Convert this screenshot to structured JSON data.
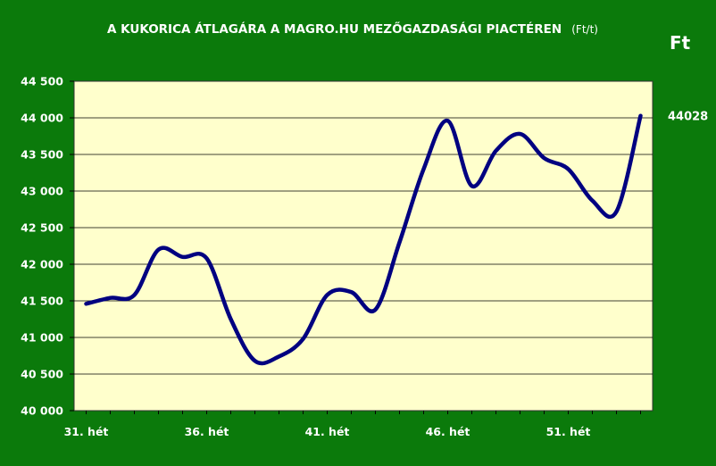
{
  "chart_data": {
    "type": "line",
    "title": "A KUKORICA ÁTLAGÁRA A MAGRO.HU MEZŐGAZDASÁGI PIACTÉREN",
    "title_suffix": "(Ft/t)",
    "unit_label": "Ft",
    "x_tick_labels": [
      "31. hét",
      "36. hét",
      "41. hét",
      "46. hét",
      "51. hét"
    ],
    "x_tick_positions": [
      31,
      36,
      41,
      46,
      51
    ],
    "y_tick_labels": [
      "40 000",
      "40 500",
      "41 000",
      "41 500",
      "42 000",
      "42 500",
      "43 000",
      "43 500",
      "44 000",
      "44 500"
    ],
    "ylim": [
      40000,
      44500
    ],
    "xlim": [
      30.5,
      54.5
    ],
    "grid": true,
    "x": [
      31,
      32,
      33,
      34,
      35,
      36,
      37,
      38,
      39,
      40,
      41,
      42,
      43,
      44,
      45,
      46,
      47,
      48,
      49,
      50,
      51,
      52,
      53,
      54
    ],
    "values": [
      41460,
      41540,
      41580,
      42200,
      42100,
      42080,
      41250,
      40680,
      40740,
      40980,
      41580,
      41620,
      41380,
      42300,
      43300,
      43960,
      43070,
      43550,
      43780,
      43450,
      43300,
      42870,
      42720,
      44028
    ],
    "last_value_label": "44028",
    "line_color": "#000080",
    "plot_background": "#ffffcc",
    "page_background": "#0b7a0b"
  }
}
